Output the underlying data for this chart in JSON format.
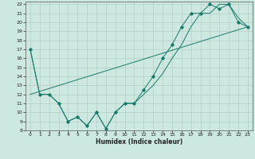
{
  "xlabel": "Humidex (Indice chaleur)",
  "background_color": "#cce8e0",
  "grid_color": "#b0c8c0",
  "line_color": "#1a7a6a",
  "x_min": 0,
  "x_max": 23,
  "y_min": 8,
  "y_max": 22,
  "line1_x": [
    0,
    1,
    2,
    3,
    4,
    5,
    6,
    7,
    8,
    9,
    10,
    11,
    12,
    13,
    14,
    15,
    16,
    17,
    18,
    19,
    20,
    21,
    22,
    23
  ],
  "line1_y": [
    17,
    12,
    12,
    11,
    9,
    9.5,
    8.5,
    10,
    8.2,
    10,
    11,
    11,
    12.5,
    14,
    16,
    17.5,
    19.5,
    21,
    21,
    22,
    21.5,
    22,
    20,
    19.5
  ],
  "line2_x": [
    0,
    1,
    2,
    3,
    4,
    5,
    6,
    7,
    8,
    9,
    10,
    11,
    12,
    13,
    14,
    15,
    16,
    17,
    18,
    19,
    20,
    21,
    22,
    23
  ],
  "line2_y": [
    17,
    12,
    12,
    11,
    9,
    9.5,
    8.5,
    10,
    8.2,
    10,
    11,
    11,
    12,
    13,
    14.3,
    16,
    17.5,
    19.5,
    21,
    21,
    22,
    22,
    20.5,
    19.5
  ],
  "line3_x": [
    0,
    23
  ],
  "line3_y": [
    12,
    19.5
  ],
  "markers_x": [
    0,
    1,
    2,
    3,
    4,
    5,
    6,
    7,
    8,
    9,
    10,
    11,
    12,
    13,
    14,
    15,
    16,
    17,
    18,
    19,
    20,
    21,
    22,
    23
  ],
  "markers_y": [
    17,
    12,
    12,
    11,
    9,
    9.5,
    8.5,
    10,
    8.2,
    10,
    11,
    11,
    12.5,
    14,
    16,
    17.5,
    19.5,
    21,
    21,
    22,
    21.5,
    22,
    20,
    19.5
  ]
}
